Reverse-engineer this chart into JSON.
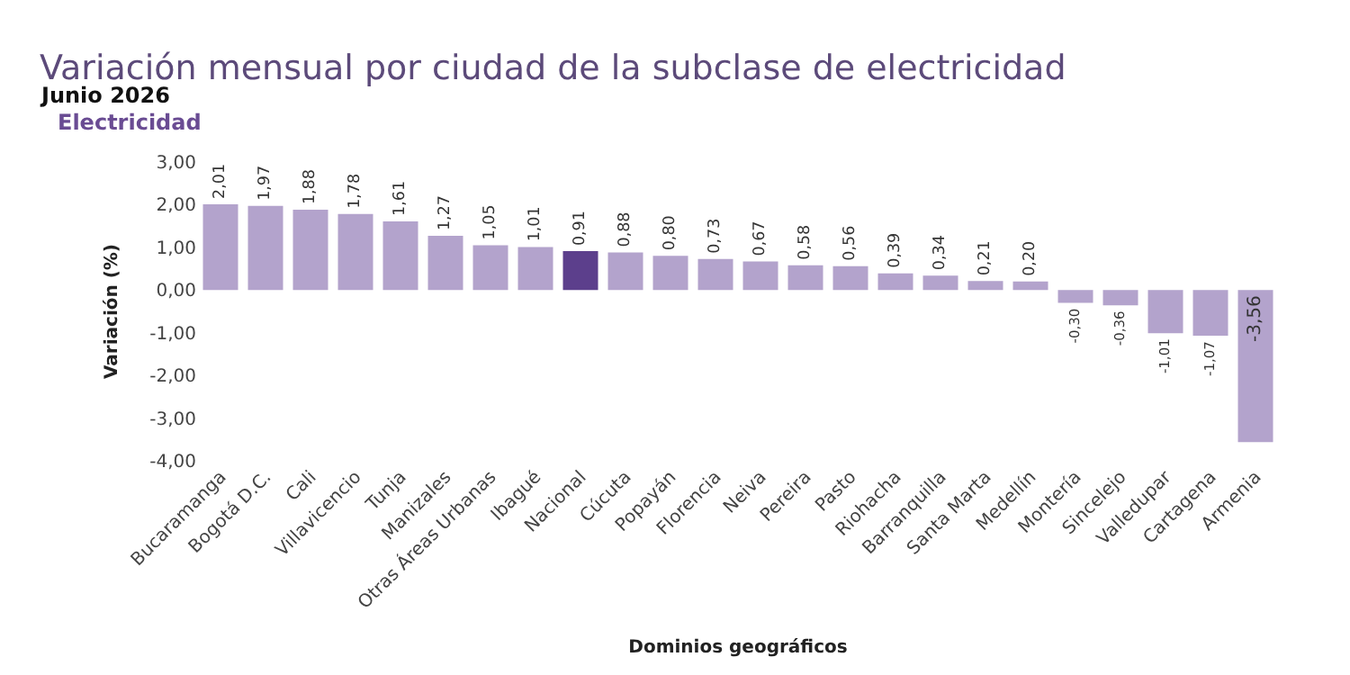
{
  "chart_data": {
    "type": "bar",
    "title": "Variación mensual por ciudad de la subclase de electricidad",
    "subtitle": "Junio 2026",
    "annotations": [
      "Electricidad"
    ],
    "xlabel": "Dominios geográficos",
    "ylabel": "Variación (%)",
    "categories": [
      "Bucaramanga",
      "Bogotá D.C.",
      "Cali",
      "Villavicencio",
      "Tunja",
      "Manizales",
      "Otras Áreas Urbanas",
      "Ibagué",
      "Nacional",
      "Cúcuta",
      "Popayán",
      "Florencia",
      "Neiva",
      "Pereira",
      "Pasto",
      "Riohacha",
      "Barranquilla",
      "Santa Marta",
      "Medellín",
      "Montería",
      "Sincelejo",
      "Valledupar",
      "Cartagena",
      "Armenia"
    ],
    "values": [
      2.01,
      1.97,
      1.88,
      1.78,
      1.61,
      1.27,
      1.05,
      1.01,
      0.91,
      0.88,
      0.8,
      0.73,
      0.67,
      0.58,
      0.56,
      0.39,
      0.34,
      0.21,
      0.2,
      -0.3,
      -0.36,
      -1.01,
      -1.07,
      -3.56
    ],
    "value_labels": [
      "2,01",
      "1,97",
      "1,88",
      "1,78",
      "1,61",
      "1,27",
      "1,05",
      "1,01",
      "0,91",
      "0,88",
      "0,80",
      "0,73",
      "0,67",
      "0,58",
      "0,56",
      "0,39",
      "0,34",
      "0,21",
      "0,20",
      "-0,30",
      "-0,36",
      "-1,01",
      "-1,07",
      "-3,56"
    ],
    "colors": [
      "#b3a3cc",
      "#b3a3cc",
      "#b3a3cc",
      "#b3a3cc",
      "#b3a3cc",
      "#b3a3cc",
      "#b3a3cc",
      "#b3a3cc",
      "#5c3f8c",
      "#b3a3cc",
      "#b3a3cc",
      "#b3a3cc",
      "#b3a3cc",
      "#b3a3cc",
      "#b3a3cc",
      "#b3a3cc",
      "#b3a3cc",
      "#b3a3cc",
      "#b3a3cc",
      "#b3a3cc",
      "#b3a3cc",
      "#b3a3cc",
      "#b3a3cc",
      "#b3a3cc"
    ],
    "ylim": [
      -4,
      3
    ],
    "yticks": [
      {
        "value": 3,
        "label": "3,00"
      },
      {
        "value": 2,
        "label": "2,00"
      },
      {
        "value": 1,
        "label": "1,00"
      },
      {
        "value": 0,
        "label": "0,00"
      },
      {
        "value": -1,
        "label": "-1,00"
      },
      {
        "value": -2,
        "label": "-2,00"
      },
      {
        "value": -3,
        "label": "-3,00"
      },
      {
        "value": -4,
        "label": "-4,00"
      }
    ],
    "legend": false
  }
}
